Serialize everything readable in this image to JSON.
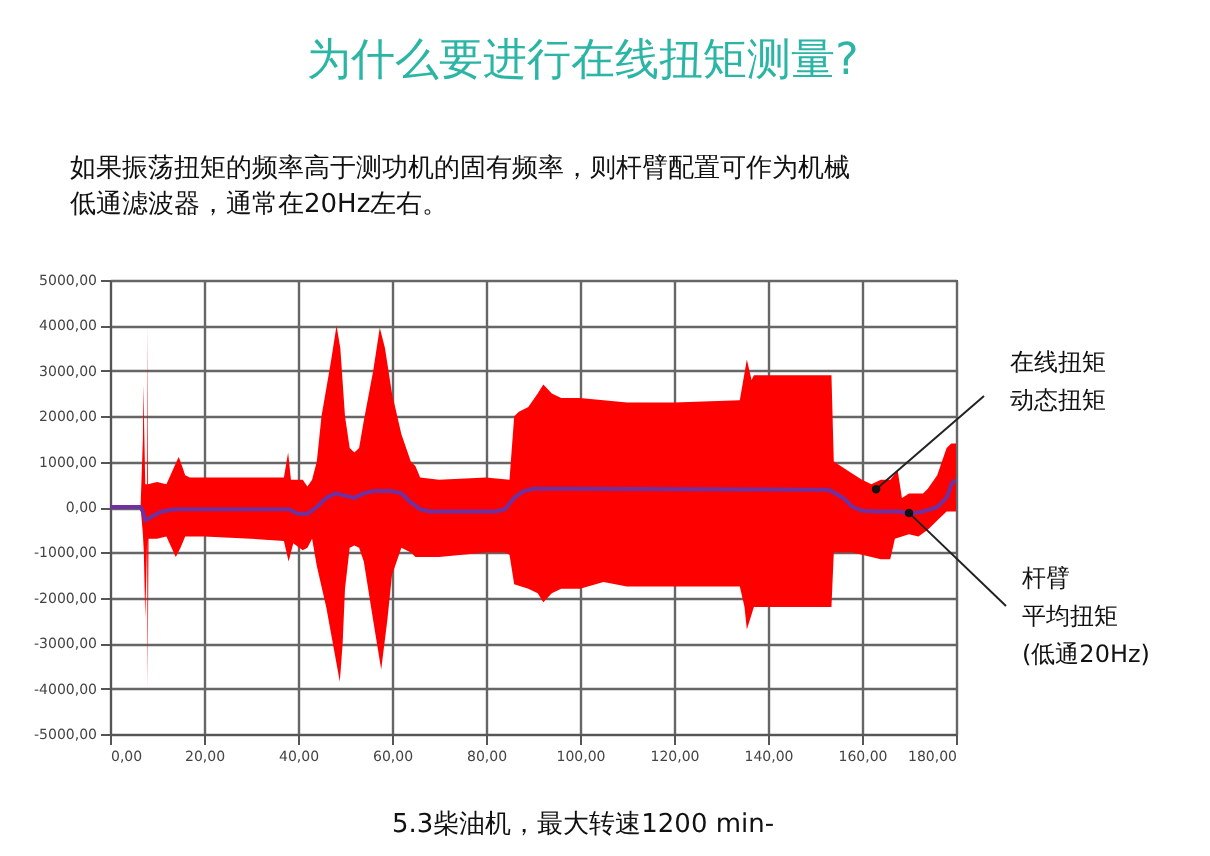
{
  "chart_data": {
    "type": "area",
    "title": "为什么要进行在线扭矩测量?",
    "subtitle": "如果振荡扭矩的频率高于测功机的固有频率，则杆臂配置可作为机械低通滤波器，通常在20Hz左右。",
    "xlim": [
      0,
      180
    ],
    "xticks": [
      {
        "value": 0,
        "label": "0,00"
      },
      {
        "value": 20,
        "label": "20,00"
      },
      {
        "value": 40,
        "label": "40,00"
      },
      {
        "value": 60,
        "label": "60,00"
      },
      {
        "value": 80,
        "label": "80,00"
      },
      {
        "value": 100,
        "label": "100,00"
      },
      {
        "value": 120,
        "label": "120,00"
      },
      {
        "value": 140,
        "label": "140,00"
      },
      {
        "value": 160,
        "label": "160,00"
      },
      {
        "value": 180,
        "label": "180,00"
      }
    ],
    "ylim": [
      -5000,
      5000
    ],
    "yticks": [
      {
        "value": -5000,
        "label": "-5000,00"
      },
      {
        "value": -4000,
        "label": "-4000,00"
      },
      {
        "value": -3000,
        "label": "-3000,00"
      },
      {
        "value": -2000,
        "label": "-2000,00"
      },
      {
        "value": -1000,
        "label": "-1000,00"
      },
      {
        "value": 0,
        "label": "0,00"
      },
      {
        "value": 1000,
        "label": "1000,00"
      },
      {
        "value": 2000,
        "label": "2000,00"
      },
      {
        "value": 3000,
        "label": "3000,00"
      },
      {
        "value": 4000,
        "label": "4000,00"
      },
      {
        "value": 5000,
        "label": "5000,00"
      }
    ],
    "grid": true,
    "series": [
      {
        "color": "#ff0000",
        "x": [
          6.5,
          7,
          7.1,
          7.5,
          7.9,
          8,
          8.1,
          10,
          12,
          14.6,
          15,
          16,
          17,
          20,
          30,
          37,
          37.9,
          38.5,
          41,
          42,
          43,
          44,
          45,
          47,
          48.2,
          49,
          50,
          51,
          52,
          53,
          54,
          56,
          57.4,
          58.5,
          60,
          62,
          64,
          65,
          66,
          70,
          80,
          85,
          86,
          87,
          89,
          91,
          92.2,
          94,
          96,
          100,
          110,
          120,
          134,
          135.5,
          136.5,
          137,
          152,
          153.5,
          154,
          157,
          160,
          162,
          164,
          166,
          167.6,
          168.5,
          170,
          173,
          174,
          176,
          178,
          179,
          180
        ],
        "values": [
          0,
          1500,
          2700,
          500,
          500,
          4000,
          500,
          550,
          500,
          1100,
          1000,
          700,
          650,
          650,
          650,
          650,
          1200,
          600,
          600,
          450,
          600,
          1000,
          2000,
          3200,
          4000,
          3500,
          2000,
          1300,
          1200,
          1300,
          1900,
          3000,
          3950,
          3500,
          2500,
          1600,
          1000,
          900,
          650,
          600,
          650,
          600,
          2000,
          2100,
          2200,
          2500,
          2700,
          2500,
          2400,
          2400,
          2300,
          2300,
          2350,
          3250,
          2800,
          2900,
          2900,
          2900,
          1000,
          800,
          600,
          500,
          600,
          600,
          800,
          200,
          300,
          300,
          400,
          700,
          1300,
          1400,
          1400
        ]
      },
      {
        "color": "#ff0000",
        "x": [
          6.5,
          7,
          7.2,
          7.5,
          7.9,
          8,
          8.2,
          10,
          12,
          14,
          15,
          16,
          20,
          30,
          37,
          38,
          39,
          41,
          42,
          43,
          44,
          46,
          48.9,
          49.5,
          50,
          51,
          52,
          53,
          54,
          56,
          57.7,
          59,
          60,
          62,
          64,
          65,
          70,
          80,
          84,
          85,
          86,
          89,
          91,
          92.2,
          94,
          96,
          100,
          105,
          110,
          120,
          134,
          135,
          135.5,
          137,
          140,
          153.5,
          154,
          158,
          160,
          162,
          164,
          166,
          167,
          170,
          172,
          174,
          176,
          178,
          179,
          180
        ],
        "values": [
          0,
          -600,
          -1000,
          -2450,
          -700,
          -4000,
          -700,
          -700,
          -650,
          -1100,
          -900,
          -650,
          -650,
          -700,
          -750,
          -1200,
          -800,
          -950,
          -900,
          -700,
          -1300,
          -2200,
          -3850,
          -3000,
          -1800,
          -900,
          -850,
          -900,
          -1200,
          -2500,
          -3580,
          -2500,
          -1500,
          -900,
          -1000,
          -1100,
          -1100,
          -1000,
          -1000,
          -1050,
          -1700,
          -1800,
          -1900,
          -2100,
          -1900,
          -1800,
          -1800,
          -1650,
          -1750,
          -1750,
          -1750,
          -2200,
          -2700,
          -2200,
          -2200,
          -2200,
          -1000,
          -1000,
          -1050,
          -1100,
          -1150,
          -1150,
          -700,
          -600,
          -650,
          -500,
          -300,
          -100,
          -100,
          -100
        ]
      },
      {
        "type": "line",
        "color": "#7030a0",
        "x": [
          0,
          6.5,
          7,
          7.5,
          9,
          11,
          14,
          20,
          38,
          40,
          42,
          44,
          46,
          48,
          50,
          52,
          54,
          56,
          60,
          62,
          64,
          66,
          68,
          82,
          84,
          86,
          88,
          90,
          100,
          150,
          153,
          156,
          158,
          160,
          163,
          168,
          170,
          173,
          176,
          178,
          179,
          180
        ],
        "values": [
          0,
          0,
          -100,
          -300,
          -200,
          -100,
          -50,
          -50,
          -50,
          -150,
          -150,
          0,
          200,
          300,
          250,
          200,
          300,
          350,
          350,
          300,
          100,
          -50,
          -100,
          -100,
          -50,
          200,
          350,
          400,
          400,
          380,
          380,
          200,
          0,
          -80,
          -100,
          -100,
          -150,
          -100,
          0,
          200,
          500,
          600
        ]
      }
    ],
    "annotations": [
      {
        "text": "在线扭矩动态扭矩",
        "x": 163,
        "y": 390
      },
      {
        "text": "杆臂平均扭矩(低通20Hz)",
        "x": 170,
        "y": -130
      },
      "5.3柴油机，最大转速1200 min-"
    ]
  }
}
